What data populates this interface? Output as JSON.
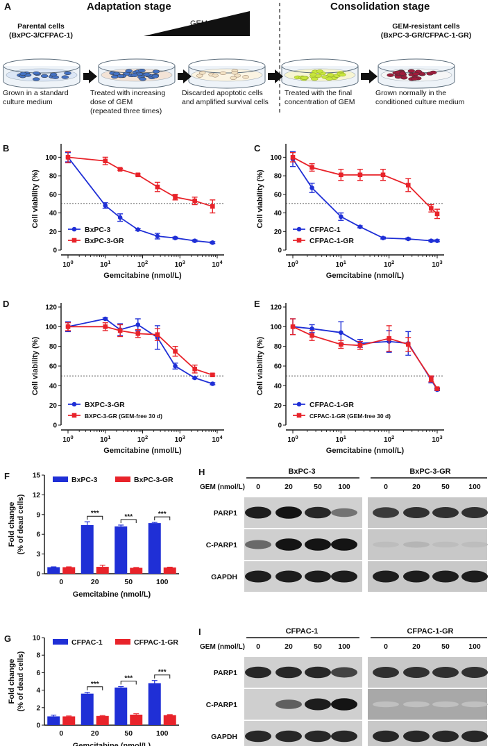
{
  "panel_a": {
    "letter": "A",
    "adaptation_title": "Adaptation stage",
    "consolidation_title": "Consolidation stage",
    "gem_label": "GEM",
    "parental_title_1": "Parental cells",
    "parental_title_2": "(BxPC-3/CFPAC-1)",
    "resistant_title_1": "GEM-resistant cells",
    "resistant_title_2": "(BxPC-3-GR/CFPAC-1-GR)",
    "captions": [
      [
        "Grown in a standard",
        "culture medium"
      ],
      [
        "Treated with increasing",
        "dose of GEM",
        "(repeated three times)"
      ],
      [
        "Discarded apoptotic cells",
        "and amplified survival cells"
      ],
      [
        "Treated with the final",
        "concentration of GEM"
      ],
      [
        "Grown normally in the",
        "conditioned culture medium"
      ]
    ],
    "colors": {
      "dish1": "#4472c4",
      "dish2": "#4472c4",
      "dish3": "#f2e2c4",
      "dish4": "#c8e63c",
      "dish5": "#a01c3c"
    }
  },
  "colors": {
    "blue": "#1f2fd6",
    "red": "#e8232a"
  },
  "panel_letters": {
    "b": "B",
    "c": "C",
    "d": "D",
    "e": "E",
    "f": "F",
    "g": "G",
    "h": "H",
    "i": "I"
  },
  "chart_data": [
    {
      "id": "B",
      "type": "line",
      "xscale": "log",
      "xlabel": "Gemcitabine (nmol/L)",
      "ylabel": "Cell viability (%)",
      "xticks": [
        "10^0",
        "10^1",
        "10^2",
        "10^3",
        "10^4"
      ],
      "xlim": [
        1,
        10000
      ],
      "ylim": [
        0,
        110
      ],
      "yticks": [
        "0",
        "20",
        "40",
        "60",
        "80",
        "100"
      ],
      "reference_line": 50,
      "legend_position": "bottom-left",
      "series": [
        {
          "name": "BxPC-3",
          "color": "blue",
          "marker": "circle",
          "x": [
            1,
            10,
            25,
            75,
            250,
            750,
            2500,
            7500
          ],
          "y": [
            100,
            48,
            35,
            22,
            15,
            13,
            10,
            8
          ],
          "err": [
            5,
            3,
            4,
            1,
            3,
            1,
            1,
            1
          ]
        },
        {
          "name": "BxPC-3-GR",
          "color": "red",
          "marker": "square",
          "x": [
            1,
            10,
            25,
            75,
            250,
            750,
            2500,
            7500
          ],
          "y": [
            100,
            96,
            87,
            81,
            68,
            57,
            53,
            47
          ],
          "err": [
            6,
            4,
            1,
            1,
            5,
            3,
            4,
            7
          ]
        }
      ]
    },
    {
      "id": "C",
      "type": "line",
      "xscale": "log",
      "xlabel": "Gemcitabine (nmol/L)",
      "ylabel": "Cell viability (%)",
      "xticks": [
        "10^0",
        "10^1",
        "10^2",
        "10^3"
      ],
      "xlim": [
        1,
        1000
      ],
      "ylim": [
        0,
        110
      ],
      "yticks": [
        "0",
        "20",
        "40",
        "60",
        "80",
        "100"
      ],
      "reference_line": 50,
      "legend_position": "bottom-left",
      "series": [
        {
          "name": "CFPAC-1",
          "color": "blue",
          "marker": "circle",
          "x": [
            1,
            2.5,
            10,
            25,
            75,
            250,
            750,
            1000
          ],
          "y": [
            98,
            67,
            36,
            25,
            13,
            12,
            10,
            10
          ],
          "err": [
            8,
            5,
            4,
            1,
            1,
            1,
            1,
            1
          ]
        },
        {
          "name": "CFPAC-1-GR",
          "color": "red",
          "marker": "square",
          "x": [
            1,
            2.5,
            10,
            25,
            75,
            250,
            750,
            1000
          ],
          "y": [
            100,
            89,
            81,
            81,
            81,
            70,
            45,
            39
          ],
          "err": [
            5,
            4,
            6,
            6,
            6,
            7,
            4,
            5
          ]
        }
      ]
    },
    {
      "id": "D",
      "type": "line",
      "xscale": "log",
      "xlabel": "Gemcitabine (nmol/L)",
      "ylabel": "Cell viability (%)",
      "xticks": [
        "10^0",
        "10^1",
        "10^2",
        "10^3",
        "10^4"
      ],
      "xlim": [
        1,
        10000
      ],
      "ylim": [
        0,
        120
      ],
      "yticks": [
        "0",
        "20",
        "40",
        "60",
        "80",
        "100",
        "120"
      ],
      "reference_line": 50,
      "legend_position": "bottom-left",
      "series": [
        {
          "name": "BXPC-3-GR",
          "color": "blue",
          "marker": "circle",
          "x": [
            1,
            10,
            25,
            75,
            250,
            750,
            2500,
            7500
          ],
          "y": [
            100,
            108,
            97,
            102,
            89,
            60,
            48,
            42
          ],
          "err": [
            5,
            1,
            6,
            6,
            12,
            3,
            1,
            1
          ]
        },
        {
          "name": "BXPC-3-GR (GEM-free 30 d)",
          "color": "red",
          "marker": "square",
          "x": [
            1,
            10,
            25,
            75,
            250,
            750,
            2500,
            7500
          ],
          "y": [
            100,
            100,
            96,
            93,
            92,
            75,
            57,
            51
          ],
          "err": [
            4,
            4,
            6,
            4,
            6,
            5,
            4,
            1
          ]
        }
      ]
    },
    {
      "id": "E",
      "type": "line",
      "xscale": "log",
      "xlabel": "Gemcitabine (nmol/L)",
      "ylabel": "Cell viability (%)",
      "xticks": [
        "10^0",
        "10^1",
        "10^2",
        "10^3"
      ],
      "xlim": [
        1,
        1000
      ],
      "ylim": [
        0,
        120
      ],
      "yticks": [
        "0",
        "20",
        "40",
        "60",
        "80",
        "100",
        "120"
      ],
      "reference_line": 50,
      "legend_position": "bottom-left",
      "series": [
        {
          "name": "CFPAC-1-GR",
          "color": "blue",
          "marker": "circle",
          "x": [
            1,
            2.5,
            10,
            25,
            100,
            250,
            750,
            1000
          ],
          "y": [
            100,
            98,
            94,
            83,
            85,
            83,
            46,
            36
          ],
          "err": [
            8,
            4,
            11,
            4,
            11,
            12,
            3,
            1
          ]
        },
        {
          "name": "CFPAC-1-GR (GEM-free 30 d)",
          "color": "red",
          "marker": "square",
          "x": [
            1,
            2.5,
            10,
            25,
            100,
            250,
            750,
            1000
          ],
          "y": [
            100,
            91,
            82,
            81,
            88,
            82,
            47,
            37
          ],
          "err": [
            8,
            5,
            4,
            4,
            13,
            7,
            3,
            1
          ]
        }
      ]
    },
    {
      "id": "F",
      "type": "bar",
      "xlabel": "Gemcitabine (nmol/L)",
      "ylabel": "Fold change (% of dead cells)",
      "ylabel_lines": [
        "Fold change",
        "(% of dead cells)"
      ],
      "categories": [
        "0",
        "20",
        "50",
        "100"
      ],
      "ylim": [
        0,
        15
      ],
      "yticks": [
        "0",
        "3",
        "6",
        "9",
        "12",
        "15"
      ],
      "significance": [
        "",
        "***",
        "***",
        "***"
      ],
      "legend_position": "top",
      "series": [
        {
          "name": "BxPC-3",
          "color": "blue",
          "values": [
            1,
            7.4,
            7.2,
            7.7
          ],
          "err": [
            0.05,
            0.5,
            0.2,
            0.1
          ]
        },
        {
          "name": "BxPC-3-GR",
          "color": "red",
          "values": [
            1,
            1.05,
            0.9,
            0.95
          ],
          "err": [
            0.05,
            0.25,
            0.05,
            0.05
          ]
        }
      ]
    },
    {
      "id": "G",
      "type": "bar",
      "xlabel": "Gemcitabine (nmol/L)",
      "ylabel": "Fold change (% of dead cells)",
      "ylabel_lines": [
        "Fold change",
        "(% of dead cells)"
      ],
      "categories": [
        "0",
        "20",
        "50",
        "100"
      ],
      "ylim": [
        0,
        10
      ],
      "yticks": [
        "0",
        "2",
        "4",
        "6",
        "8",
        "10"
      ],
      "significance": [
        "",
        "***",
        "***",
        "***"
      ],
      "legend_position": "top",
      "series": [
        {
          "name": "CFPAC-1",
          "color": "blue",
          "values": [
            1,
            3.6,
            4.3,
            4.8
          ],
          "err": [
            0.15,
            0.15,
            0.1,
            0.3
          ]
        },
        {
          "name": "CFPAC-1-GR",
          "color": "red",
          "values": [
            1,
            1.05,
            1.2,
            1.15
          ],
          "err": [
            0.05,
            0.05,
            0.1,
            0.05
          ]
        }
      ]
    }
  ],
  "blot_h": {
    "group_left": "BxPC-3",
    "group_right": "BxPC-3-GR",
    "gem_label": "GEM (nmol/L)",
    "doses": [
      "0",
      "20",
      "50",
      "100"
    ],
    "rows": [
      "PARP1",
      "C-PARP1",
      "GAPDH"
    ],
    "intensity": [
      [
        0.9,
        0.95,
        0.85,
        0.45,
        0.75,
        0.8,
        0.8,
        0.8
      ],
      [
        0.5,
        0.95,
        0.95,
        0.95,
        0.06,
        0.1,
        0.06,
        0.06
      ],
      [
        0.9,
        0.9,
        0.9,
        0.9,
        0.9,
        0.9,
        0.9,
        0.9
      ]
    ]
  },
  "blot_i": {
    "group_left": "CFPAC-1",
    "group_right": "CFPAC-1-GR",
    "gem_label": "GEM (nmol/L)",
    "doses": [
      "0",
      "20",
      "50",
      "100"
    ],
    "rows": [
      "PARP1",
      "C-PARP1",
      "GAPDH"
    ],
    "intensity": [
      [
        0.85,
        0.85,
        0.85,
        0.7,
        0.8,
        0.8,
        0.8,
        0.8
      ],
      [
        0.0,
        0.55,
        0.9,
        0.95,
        0.04,
        0.04,
        0.04,
        0.04
      ],
      [
        0.85,
        0.85,
        0.85,
        0.85,
        0.85,
        0.85,
        0.85,
        0.85
      ]
    ]
  }
}
